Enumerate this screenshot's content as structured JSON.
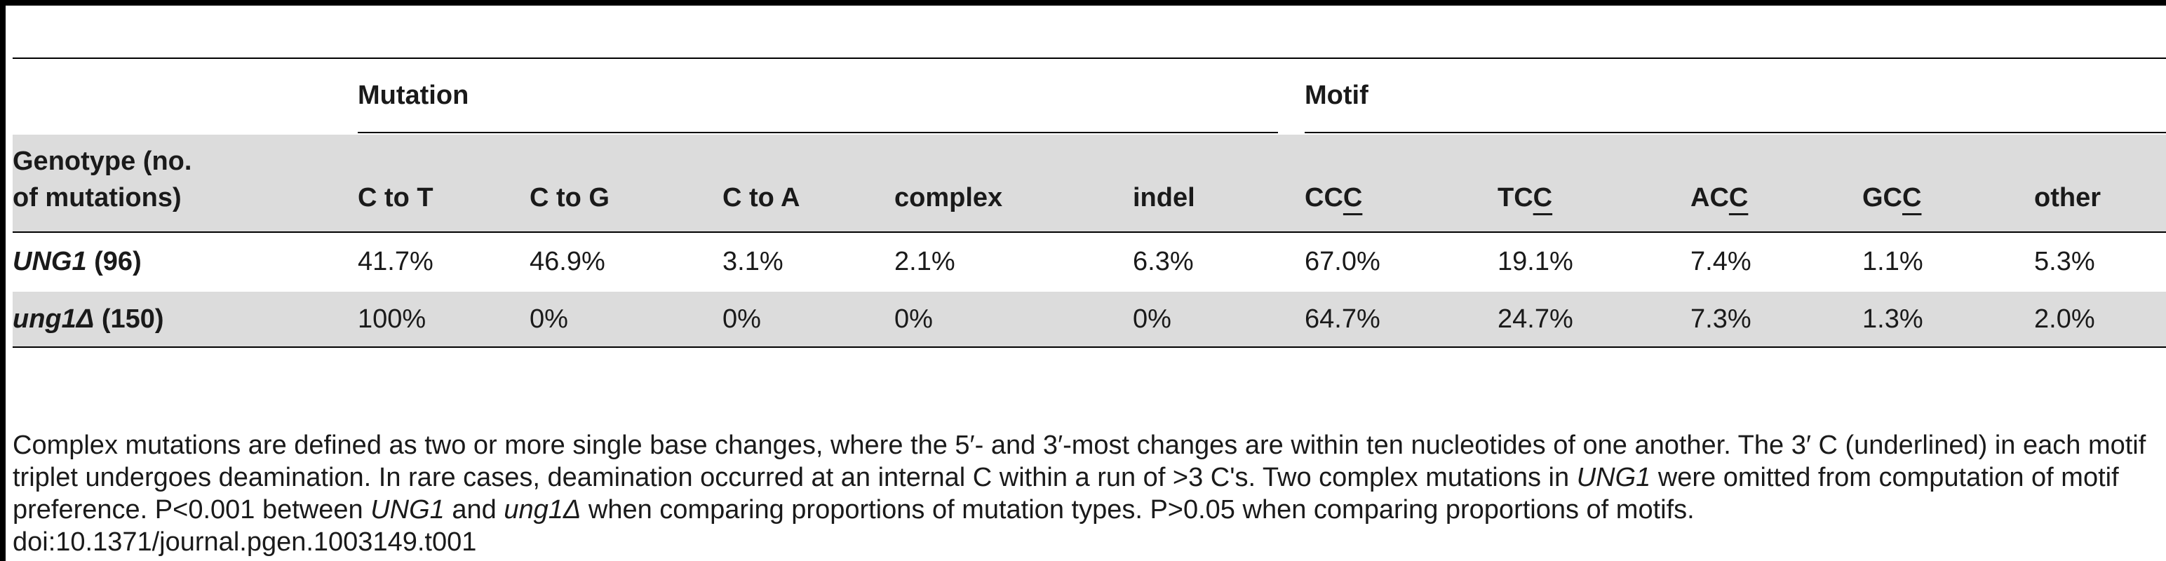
{
  "table": {
    "group_headers": {
      "mutation": "Mutation",
      "motif": "Motif"
    },
    "genotype_header": [
      "Genotype (no.",
      "of mutations)"
    ],
    "columns": [
      {
        "text": "C to T"
      },
      {
        "text": "C to G"
      },
      {
        "text": "C to A"
      },
      {
        "text": "complex"
      },
      {
        "text": "indel"
      },
      {
        "pre": "CC",
        "u": "C"
      },
      {
        "pre": "TC",
        "u": "C"
      },
      {
        "pre": "AC",
        "u": "C"
      },
      {
        "pre": "GC",
        "u": "C"
      },
      {
        "text": "other"
      }
    ],
    "rows": [
      {
        "name": "UNG1",
        "count": "(96)",
        "values": [
          "41.7%",
          "46.9%",
          "3.1%",
          "2.1%",
          "6.3%",
          "67.0%",
          "19.1%",
          "7.4%",
          "1.1%",
          "5.3%"
        ]
      },
      {
        "name": "ung1Δ",
        "count": "(150)",
        "values": [
          "100%",
          "0%",
          "0%",
          "0%",
          "0%",
          "64.7%",
          "24.7%",
          "7.3%",
          "1.3%",
          "2.0%"
        ]
      }
    ]
  },
  "footnote": {
    "p1": "Complex mutations are defined as two or more single base changes, where the 5′- and 3′-most changes are within ten nucleotides of one another. The 3′ C (underlined) in each motif triplet undergoes deamination. In rare cases, deamination occurred at an internal C within a run of >3 C's. Two complex mutations in",
    "gene1": "UNG1",
    "p2": "were omitted from computation of motif preference. P<0.001 between",
    "gene2": "UNG1",
    "p3": "and",
    "gene3": "ung1Δ",
    "p4": "when comparing proportions of mutation types. P>0.05 when comparing proportions of motifs."
  },
  "doi": "doi:10.1371/journal.pgen.1003149.t001"
}
